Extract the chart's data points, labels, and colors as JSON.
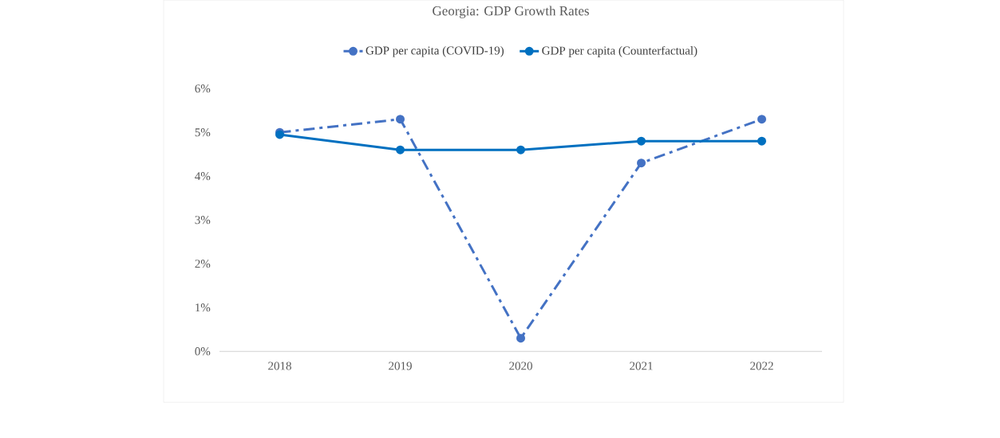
{
  "chart_data": {
    "type": "line",
    "title": "Georgia: GDP Growth Rates",
    "categories": [
      "2018",
      "2019",
      "2020",
      "2021",
      "2022"
    ],
    "series": [
      {
        "name": "GDP per capita (COVID-19)",
        "color": "#4472c4",
        "values": [
          5.0,
          5.3,
          0.3,
          4.3,
          5.3
        ],
        "line_style": "dashed"
      },
      {
        "name": "GDP per capita (Counterfactual)",
        "color": "#0070c0",
        "values": [
          4.95,
          4.6,
          4.6,
          4.8,
          4.8
        ],
        "line_style": "solid"
      }
    ],
    "ylim": [
      0,
      6
    ],
    "yticks": [
      {
        "value": 0,
        "label": "0%"
      },
      {
        "value": 1,
        "label": "1%"
      },
      {
        "value": 2,
        "label": "2%"
      },
      {
        "value": 3,
        "label": "3%"
      },
      {
        "value": 4,
        "label": "4%"
      },
      {
        "value": 5,
        "label": "5%"
      },
      {
        "value": 6,
        "label": "6%"
      }
    ],
    "grid": false,
    "legend": "top",
    "marker": "circle"
  }
}
